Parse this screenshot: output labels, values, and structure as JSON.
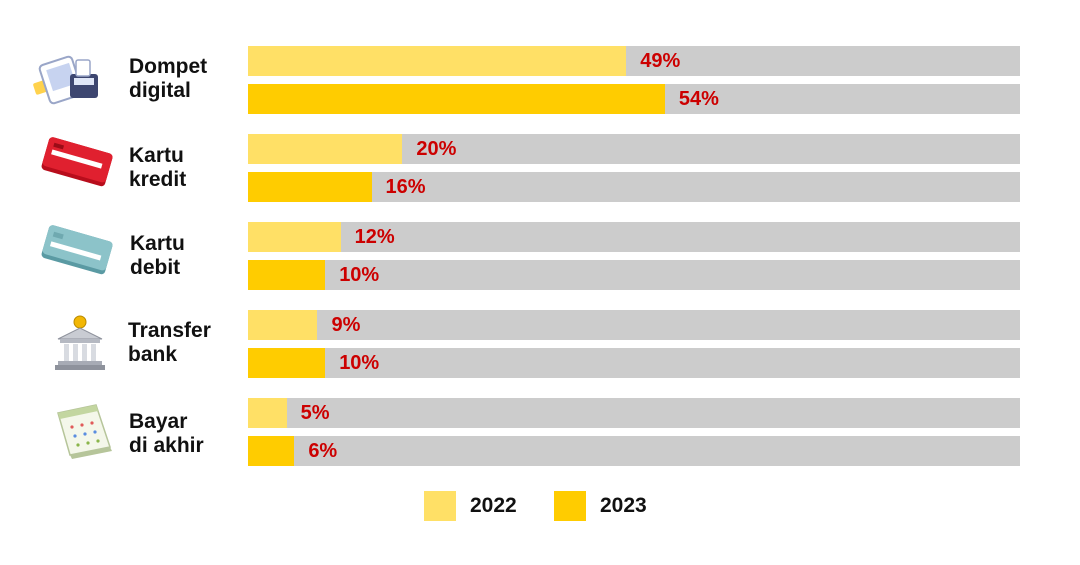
{
  "chart_data": {
    "type": "bar",
    "orientation": "horizontal",
    "categories": [
      "Dompet digital",
      "Kartu kredit",
      "Kartu debit",
      "Transfer bank",
      "Bayar di akhir"
    ],
    "category_lines": [
      [
        "Dompet",
        "digital"
      ],
      [
        "Kartu",
        "kredit"
      ],
      [
        "Kartu",
        "debit"
      ],
      [
        "Transfer",
        "bank"
      ],
      [
        "Bayar",
        "di akhir"
      ]
    ],
    "icons": [
      "digital-wallet-icon",
      "credit-card-icon",
      "debit-card-icon",
      "bank-icon",
      "calendar-icon"
    ],
    "series": [
      {
        "name": "2022",
        "values": [
          49,
          20,
          12,
          9,
          5
        ],
        "labels": [
          "49%",
          "20%",
          "12%",
          "9%",
          "5%"
        ],
        "color": "#ffe066"
      },
      {
        "name": "2023",
        "values": [
          54,
          16,
          10,
          10,
          6
        ],
        "labels": [
          "54%",
          "16%",
          "10%",
          "10%",
          "6%"
        ],
        "color": "#ffcc00"
      }
    ],
    "xlim": [
      0,
      100
    ],
    "track_color": "#cccccc",
    "value_label_color": "#cc0000",
    "legend_position": "bottom-center",
    "grid": false
  }
}
